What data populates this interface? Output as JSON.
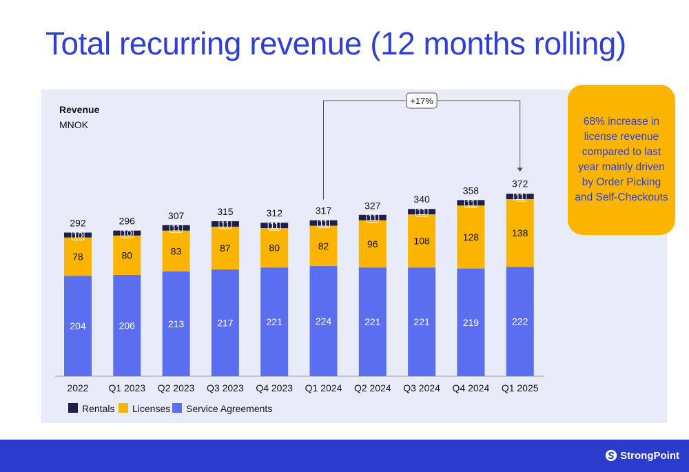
{
  "page": {
    "title": "Total recurring revenue (12 months rolling)",
    "callout": "68% increase in license revenue compared to last year mainly driven by Order Picking and Self-Checkouts",
    "brand": "StrongPoint"
  },
  "colors": {
    "title": "#2f3fd4",
    "rentals": "#1f1f4d",
    "licenses": "#fbb400",
    "service_agreements": "#5b6ef0",
    "callout": "#fbb400",
    "footer": "#2b3bcc"
  },
  "chart_data": {
    "type": "bar",
    "stacked": true,
    "unit_label": "Revenue",
    "unit_sublabel": "MNOK",
    "categories": [
      "2022",
      "Q1 2023",
      "Q2 2023",
      "Q3 2023",
      "Q4 2023",
      "Q1 2024",
      "Q2 2024",
      "Q3 2024",
      "Q4 2024",
      "Q1 2025"
    ],
    "series": [
      {
        "name": "Service Agreements",
        "values": [
          204,
          206,
          213,
          217,
          221,
          224,
          221,
          221,
          219,
          222
        ]
      },
      {
        "name": "Licenses",
        "values": [
          78,
          80,
          83,
          87,
          80,
          82,
          96,
          108,
          128,
          138
        ]
      },
      {
        "name": "Rentals",
        "values": [
          10,
          10,
          11,
          11,
          11,
          11,
          11,
          11,
          11,
          11
        ]
      }
    ],
    "totals": [
      292,
      296,
      307,
      315,
      312,
      317,
      327,
      340,
      358,
      372
    ],
    "legend": [
      "Rentals",
      "Licenses",
      "Service Agreements"
    ],
    "legend_position": "bottom-left",
    "annotation": {
      "label": "+17%",
      "from": "Q1 2024",
      "to": "Q1 2025"
    },
    "grid": false
  }
}
